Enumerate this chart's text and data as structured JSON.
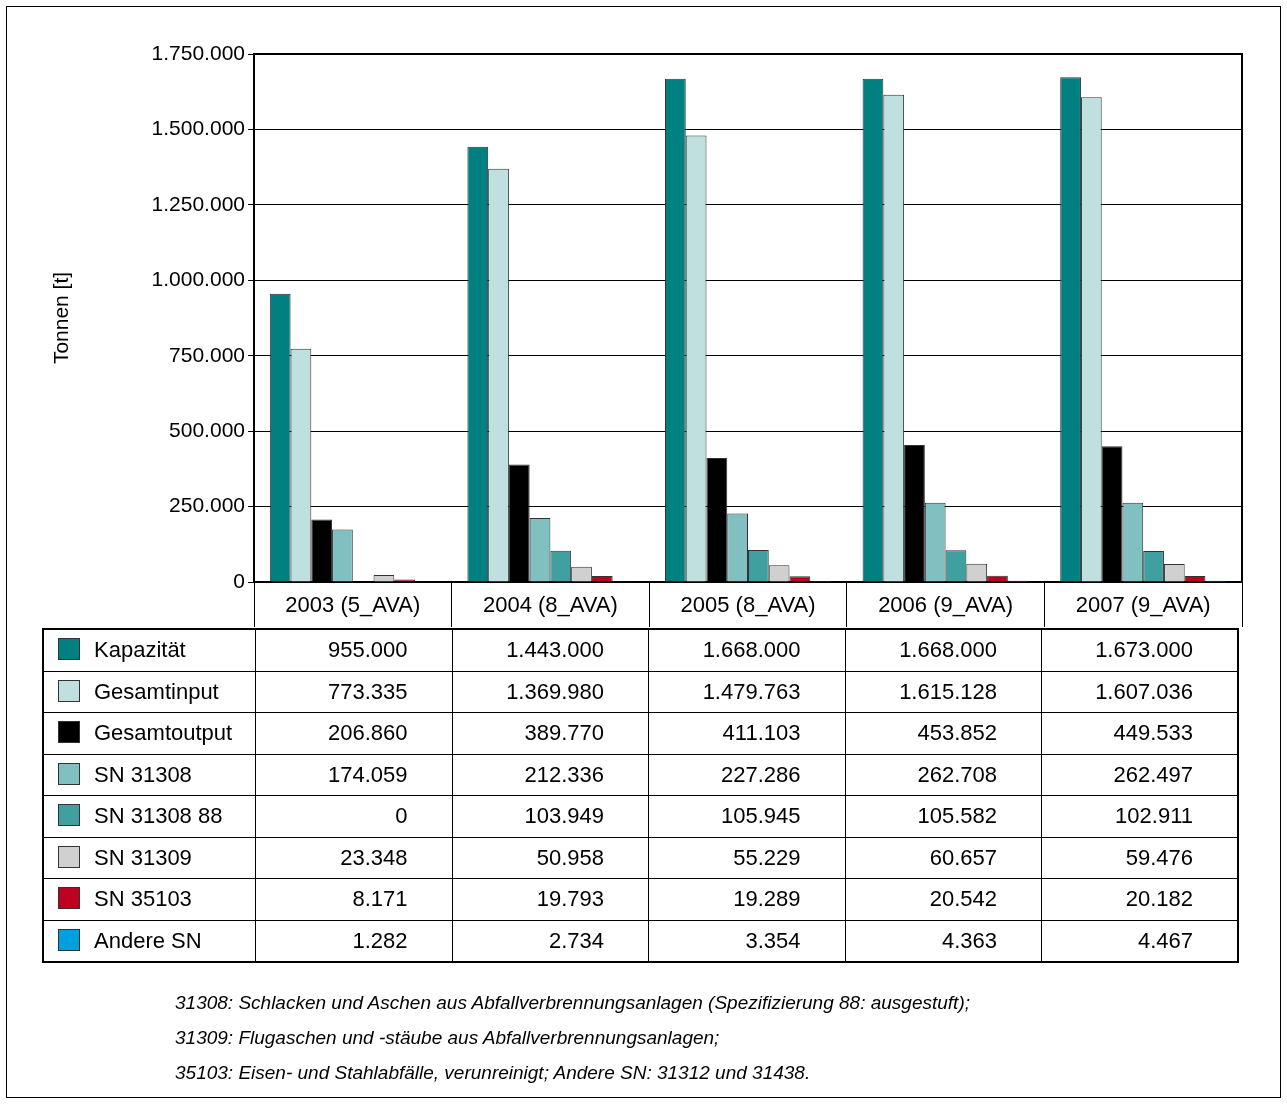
{
  "chart_data": {
    "type": "bar",
    "ylabel": "Tonnen [t]",
    "categories": [
      "2003 (5_AVA)",
      "2004 (8_AVA)",
      "2005 (8_AVA)",
      "2006 (9_AVA)",
      "2007 (9_AVA)"
    ],
    "series": [
      {
        "name": "Kapazität",
        "color": "#008080",
        "values": [
          955000,
          1443000,
          1668000,
          1668000,
          1673000
        ],
        "value_labels": [
          "955.000",
          "1.443.000",
          "1.668.000",
          "1.668.000",
          "1.673.000"
        ]
      },
      {
        "name": "Gesamtinput",
        "color": "#c0e0e0",
        "values": [
          773335,
          1369980,
          1479763,
          1615128,
          1607036
        ],
        "value_labels": [
          "773.335",
          "1.369.980",
          "1.479.763",
          "1.615.128",
          "1.607.036"
        ]
      },
      {
        "name": "Gesamtoutput",
        "color": "#000000",
        "values": [
          206860,
          389770,
          411103,
          453852,
          449533
        ],
        "value_labels": [
          "206.860",
          "389.770",
          "411.103",
          "453.852",
          "449.533"
        ]
      },
      {
        "name": "SN 31308",
        "color": "#80c0c0",
        "values": [
          174059,
          212336,
          227286,
          262708,
          262497
        ],
        "value_labels": [
          "174.059",
          "212.336",
          "227.286",
          "262.708",
          "262.497"
        ]
      },
      {
        "name": "SN 31308 88",
        "color": "#40a0a0",
        "values": [
          0,
          103949,
          105945,
          105582,
          102911
        ],
        "value_labels": [
          "0",
          "103.949",
          "105.945",
          "105.582",
          "102.911"
        ]
      },
      {
        "name": "SN 31309",
        "color": "#d0d0d0",
        "values": [
          23348,
          50958,
          55229,
          60657,
          59476
        ],
        "value_labels": [
          "23.348",
          "50.958",
          "55.229",
          "60.657",
          "59.476"
        ]
      },
      {
        "name": "SN 35103",
        "color": "#c00020",
        "values": [
          8171,
          19793,
          19289,
          20542,
          20182
        ],
        "value_labels": [
          "8.171",
          "19.793",
          "19.289",
          "20.542",
          "20.182"
        ]
      },
      {
        "name": "Andere SN",
        "color": "#00a0e0",
        "values": [
          1282,
          2734,
          3354,
          4363,
          4467
        ],
        "value_labels": [
          "1.282",
          "2.734",
          "3.354",
          "4.363",
          "4.467"
        ]
      }
    ],
    "ylim": [
      0,
      1750000
    ],
    "yticks": [
      0,
      {
        "value": 250000,
        "label": "250.000"
      },
      {
        "value": 500000,
        "label": "500.000"
      },
      {
        "value": 750000,
        "label": "750.000"
      },
      {
        "value": 1000000,
        "label": "1.000.000"
      },
      {
        "value": 1250000,
        "label": "1.250.000"
      },
      {
        "value": 1500000,
        "label": "1.500.000"
      },
      {
        "value": 1750000,
        "label": "1.750.000"
      }
    ],
    "grid": "y",
    "legend": "bottom",
    "annotations": [
      "31308: Schlacken und Aschen aus Abfallverbrennungsanlagen (Spezifizierung 88: ausgestuft);",
      "31309: Flugaschen und -stäube aus Abfallverbrennungsanlagen;",
      "35103: Eisen- und Stahlabfälle, verunreinigt; Andere SN: 31312 und 31438."
    ]
  }
}
